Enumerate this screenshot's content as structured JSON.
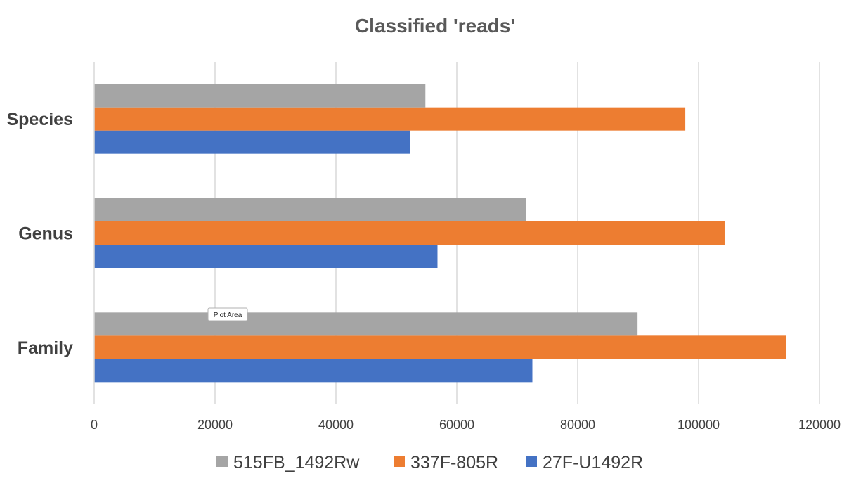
{
  "chart_data": {
    "type": "bar",
    "orientation": "horizontal",
    "title": "Classified 'reads'",
    "categories": [
      "Family",
      "Genus",
      "Species"
    ],
    "series": [
      {
        "name": "27F-U1492R",
        "color": "#4472C4",
        "values": [
          72500,
          56800,
          52300
        ]
      },
      {
        "name": "337F-805R",
        "color": "#ED7D31",
        "values": [
          114500,
          104300,
          97800
        ]
      },
      {
        "name": "515FB_1492Rw",
        "color": "#A5A5A5",
        "values": [
          89900,
          71400,
          54800
        ]
      }
    ],
    "legend_order": [
      "515FB_1492Rw",
      "337F-805R",
      "27F-U1492R"
    ],
    "xlim": [
      0,
      120000
    ],
    "xticks": [
      0,
      20000,
      40000,
      60000,
      80000,
      100000,
      120000
    ],
    "grid": true,
    "legend_position": "bottom"
  },
  "tooltip": {
    "label": "Plot Area"
  }
}
